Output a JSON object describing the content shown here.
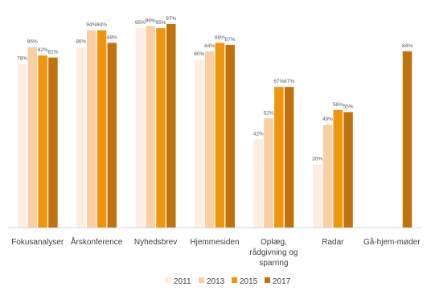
{
  "chart_data": {
    "type": "bar",
    "categories": [
      [
        "Fokusanalyser"
      ],
      [
        "Årskonference"
      ],
      [
        "Nyhedsbrev"
      ],
      [
        "Hjemmesiden"
      ],
      [
        "Oplæg,",
        "rådgivning og",
        "sparring"
      ],
      [
        "Radar"
      ],
      [
        "Gå-hjem-møder"
      ]
    ],
    "series": [
      {
        "name": "2011",
        "color": "#fdeee2",
        "values": [
          78,
          86,
          95,
          80,
          42,
          30,
          null
        ],
        "labels": [
          "78%",
          "86%",
          "95%",
          "80%",
          "42%",
          "30%",
          ""
        ]
      },
      {
        "name": "2013",
        "color": "#f9cfa5",
        "values": [
          86,
          94,
          96,
          84,
          52,
          49,
          null
        ],
        "labels": [
          "86%",
          "94%",
          "96%",
          "84%",
          "52%",
          "49%",
          ""
        ]
      },
      {
        "name": "2015",
        "color": "#f0960e",
        "values": [
          82,
          94,
          95,
          88,
          67,
          56,
          null
        ],
        "labels": [
          "82%",
          "94%",
          "95%",
          "88%",
          "67%",
          "56%",
          ""
        ]
      },
      {
        "name": "2017",
        "color": "#c0720f",
        "values": [
          81,
          88,
          97,
          87,
          67,
          55,
          84
        ],
        "labels": [
          "81%",
          "88%",
          "97%",
          "87%",
          "67%",
          "55%",
          "84%"
        ]
      }
    ],
    "ylim": [
      0,
      100
    ],
    "legend_position": "bottom",
    "grid": false
  }
}
